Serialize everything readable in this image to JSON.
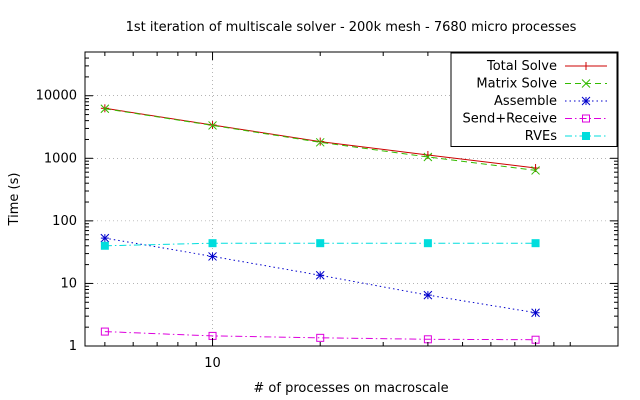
{
  "chart_data": {
    "type": "line",
    "title": "1st iteration of multiscale solver - 200k mesh - 7680 micro processes",
    "xlabel": "# of processes on macroscale",
    "ylabel": "Time (s)",
    "xscale": "log",
    "yscale": "log",
    "xlim": [
      4.4,
      136
    ],
    "ylim": [
      1,
      50000
    ],
    "x_ticks": [
      10
    ],
    "y_ticks": [
      1,
      10,
      100,
      1000,
      10000
    ],
    "grid": true,
    "legend_position": "top-right",
    "x": [
      5,
      10,
      20,
      40,
      80
    ],
    "series": [
      {
        "name": "Total Solve",
        "color": "#cc0000",
        "marker": "plus",
        "dash": "solid",
        "values": [
          6300,
          3400,
          1850,
          1130,
          700
        ]
      },
      {
        "name": "Matrix Solve",
        "color": "#33bb00",
        "marker": "cross",
        "dash": "dashed",
        "values": [
          6200,
          3350,
          1800,
          1050,
          640
        ]
      },
      {
        "name": "Assemble",
        "color": "#0000cc",
        "marker": "star",
        "dash": "dotted",
        "values": [
          53,
          27,
          13.5,
          6.5,
          3.4
        ]
      },
      {
        "name": "Send+Receive",
        "color": "#dd00dd",
        "marker": "square-open",
        "dash": "dashdot",
        "values": [
          1.7,
          1.45,
          1.35,
          1.28,
          1.26
        ]
      },
      {
        "name": "RVEs",
        "color": "#00dddd",
        "marker": "square-filled",
        "dash": "dashdot",
        "values": [
          40,
          44,
          44,
          44,
          44
        ]
      }
    ]
  }
}
